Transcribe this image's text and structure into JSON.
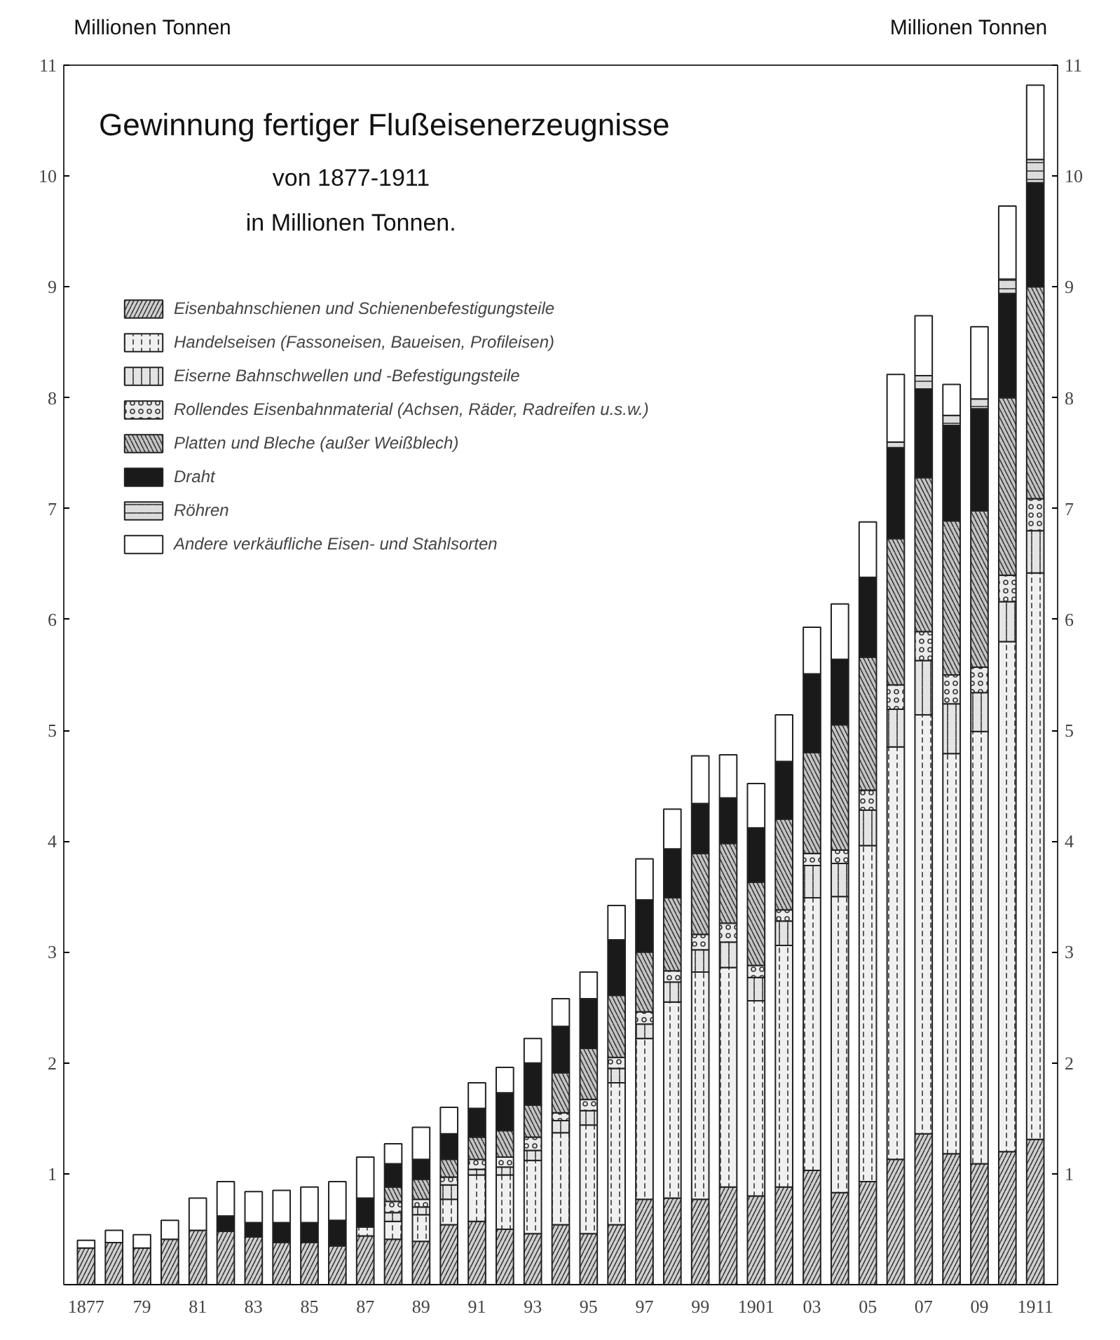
{
  "chart_data": {
    "type": "bar",
    "stacked": true,
    "title": "Gewinnung fertiger Flußeisenerzeugnisse",
    "subtitle": "von 1877-1911\nin Millionen Tonnen.",
    "ylabel": "Millionen Tonnen",
    "y2label": "Millionen Tonnen",
    "categories": [
      "1877",
      null,
      "79",
      null,
      "81",
      null,
      "83",
      null,
      "85",
      null,
      "87",
      null,
      "89",
      null,
      "91",
      null,
      "93",
      null,
      "95",
      null,
      "97",
      null,
      "99",
      null,
      "1901",
      null,
      "03",
      null,
      "05",
      null,
      "07",
      null,
      "09",
      null,
      "1911"
    ],
    "ylim": [
      0,
      11
    ],
    "yticks": [
      1,
      2,
      3,
      4,
      5,
      6,
      7,
      8,
      9,
      10,
      11
    ],
    "y2lim": [
      0,
      11
    ],
    "y2ticks": [
      1,
      2,
      3,
      4,
      5,
      6,
      7,
      8,
      9,
      10,
      11
    ],
    "grid": false,
    "legend": "top left",
    "series": [
      {
        "name": "Eisenbahnschienen und Schienenbefestigungsteile",
        "color": "#d0d0d0",
        "values": [
          0.33,
          0.38,
          0.33,
          0.41,
          0.49,
          0.48,
          0.43,
          0.38,
          0.38,
          0.35,
          0.44,
          0.41,
          0.39,
          0.54,
          0.57,
          0.5,
          0.46,
          0.54,
          0.46,
          0.54,
          0.77,
          0.78,
          0.77,
          0.88,
          0.8,
          0.88,
          1.03,
          0.83,
          0.93,
          1.13,
          1.36,
          1.18,
          1.09,
          1.2,
          1.31
        ]
      },
      {
        "name": "Handelseisen (Fassoneisen, Baueisen, Profileisen)",
        "color": "#f0f0f0",
        "values": [
          0,
          0,
          0,
          0,
          0,
          0,
          0,
          0,
          0,
          0,
          0.08,
          0.16,
          0.24,
          0.23,
          0.42,
          0.49,
          0.66,
          0.83,
          0.98,
          1.28,
          1.45,
          1.77,
          2.05,
          1.98,
          1.76,
          2.18,
          2.46,
          2.67,
          3.03,
          3.72,
          3.78,
          3.61,
          3.9,
          4.6,
          5.11
        ]
      },
      {
        "name": "Eiserne Bahnschwellen und -Befestigungsteile",
        "color": "#e4e4e4",
        "values": [
          0,
          0,
          0,
          0,
          0,
          0,
          0,
          0,
          0,
          0,
          0,
          0.08,
          0.07,
          0.13,
          0.05,
          0.07,
          0.09,
          0.11,
          0.13,
          0.13,
          0.13,
          0.18,
          0.2,
          0.23,
          0.21,
          0.22,
          0.29,
          0.3,
          0.32,
          0.34,
          0.49,
          0.45,
          0.35,
          0.36,
          0.38
        ]
      },
      {
        "name": "Rollendes Eisenbahnmaterial (Achsen, Räder, Radreifen u.s.w.)",
        "color": "#ebebeb",
        "values": [
          0,
          0,
          0,
          0,
          0,
          0,
          0,
          0,
          0,
          0,
          0,
          0.1,
          0.07,
          0.07,
          0.09,
          0.09,
          0.12,
          0.07,
          0.1,
          0.1,
          0.11,
          0.1,
          0.14,
          0.17,
          0.11,
          0.1,
          0.11,
          0.12,
          0.18,
          0.22,
          0.26,
          0.26,
          0.23,
          0.24,
          0.29
        ]
      },
      {
        "name": "Platten und Bleche (außer Weißblech)",
        "color": "#c4c4c4",
        "values": [
          0,
          0,
          0,
          0,
          0,
          0,
          0,
          0,
          0,
          0,
          0,
          0.13,
          0.18,
          0.16,
          0.2,
          0.24,
          0.29,
          0.36,
          0.46,
          0.56,
          0.54,
          0.66,
          0.73,
          0.72,
          0.75,
          0.82,
          0.91,
          1.13,
          1.2,
          1.32,
          1.39,
          1.39,
          1.41,
          1.6,
          1.91
        ]
      },
      {
        "name": "Draht",
        "color": "#1a1a1a",
        "values": [
          0,
          0,
          0,
          0,
          0,
          0.14,
          0.13,
          0.18,
          0.18,
          0.23,
          0.26,
          0.21,
          0.18,
          0.23,
          0.26,
          0.34,
          0.38,
          0.42,
          0.45,
          0.5,
          0.47,
          0.44,
          0.45,
          0.41,
          0.49,
          0.52,
          0.71,
          0.59,
          0.72,
          0.82,
          0.8,
          0.86,
          0.92,
          0.94,
          0.94
        ]
      },
      {
        "name": "Röhren",
        "color": "#dcdcdc",
        "values": [
          0,
          0,
          0,
          0,
          0,
          0,
          0,
          0,
          0,
          0,
          0,
          0,
          0,
          0,
          0,
          0,
          0,
          0,
          0,
          0,
          0,
          0,
          0,
          0,
          0,
          0,
          0,
          0,
          0,
          0.05,
          0.12,
          0.09,
          0.09,
          0.13,
          0.21
        ]
      },
      {
        "name": "Andere verkäufliche Eisen- und Stahlsorten",
        "color": "#ffffff",
        "values": [
          0.07,
          0.11,
          0.12,
          0.17,
          0.29,
          0.31,
          0.28,
          0.29,
          0.32,
          0.35,
          0.37,
          0.18,
          0.29,
          0.24,
          0.23,
          0.23,
          0.22,
          0.25,
          0.24,
          0.31,
          0.37,
          0.36,
          0.43,
          0.39,
          0.4,
          0.42,
          0.42,
          0.5,
          0.5,
          0.61,
          0.54,
          0.28,
          0.65,
          0.66,
          0.67
        ]
      }
    ]
  }
}
